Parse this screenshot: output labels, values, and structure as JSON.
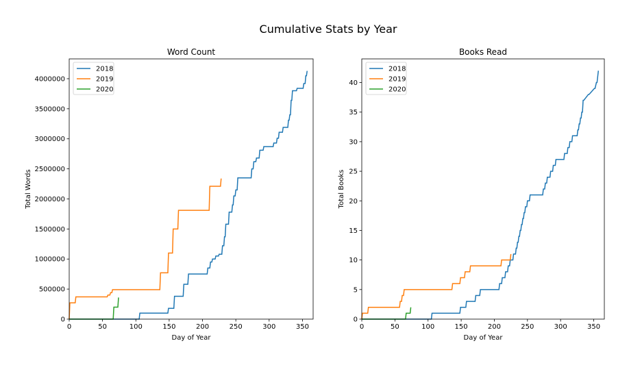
{
  "figure": {
    "title": "Cumulative Stats by Year"
  },
  "chart_data": [
    {
      "type": "line",
      "title": "Word Count",
      "xlabel": "Day of Year",
      "ylabel": "Total Words",
      "xlim": [
        0,
        366
      ],
      "ylim": [
        0,
        4330000
      ],
      "xticks": [
        0,
        50,
        100,
        150,
        200,
        250,
        300,
        350
      ],
      "yticks": [
        0,
        500000,
        1000000,
        1500000,
        2000000,
        2500000,
        3000000,
        3500000,
        4000000
      ],
      "legend": "upper-left",
      "grid": false,
      "step": true,
      "series": [
        {
          "name": "2018",
          "color": "#1f77b4",
          "x": [
            0,
            105,
            106,
            148,
            149,
            157,
            158,
            171,
            172,
            178,
            179,
            207,
            208,
            211,
            212,
            214,
            215,
            219,
            220,
            224,
            225,
            229,
            230,
            232,
            233,
            234,
            235,
            239,
            240,
            244,
            245,
            246,
            247,
            249,
            250,
            252,
            253,
            273,
            274,
            276,
            277,
            280,
            281,
            285,
            286,
            291,
            292,
            306,
            307,
            311,
            312,
            314,
            315,
            320,
            321,
            328,
            329,
            330,
            331,
            332,
            333,
            334,
            335,
            341,
            342,
            351,
            352,
            354,
            355,
            356,
            357
          ],
          "y": [
            0,
            0,
            100000,
            100000,
            180000,
            180000,
            380000,
            380000,
            580000,
            580000,
            750000,
            750000,
            850000,
            850000,
            950000,
            950000,
            1000000,
            1000000,
            1050000,
            1050000,
            1080000,
            1080000,
            1220000,
            1220000,
            1370000,
            1370000,
            1580000,
            1580000,
            1780000,
            1780000,
            1900000,
            1900000,
            2050000,
            2050000,
            2150000,
            2150000,
            2350000,
            2350000,
            2500000,
            2500000,
            2620000,
            2620000,
            2680000,
            2680000,
            2810000,
            2810000,
            2870000,
            2870000,
            2930000,
            2930000,
            3010000,
            3010000,
            3110000,
            3110000,
            3190000,
            3190000,
            3310000,
            3310000,
            3400000,
            3400000,
            3640000,
            3640000,
            3800000,
            3800000,
            3840000,
            3840000,
            3920000,
            3920000,
            4050000,
            4050000,
            4130000
          ]
        },
        {
          "name": "2019",
          "color": "#ff7f0e",
          "x": [
            0,
            1,
            9,
            10,
            57,
            58,
            61,
            62,
            64,
            65,
            136,
            137,
            148,
            149,
            155,
            156,
            163,
            164,
            210,
            211,
            227,
            228
          ],
          "y": [
            0,
            270000,
            270000,
            370000,
            370000,
            400000,
            400000,
            440000,
            440000,
            490000,
            490000,
            770000,
            770000,
            1100000,
            1100000,
            1500000,
            1500000,
            1810000,
            1810000,
            2210000,
            2210000,
            2340000
          ]
        },
        {
          "name": "2020",
          "color": "#2ca02c",
          "x": [
            0,
            66,
            67,
            73,
            74
          ],
          "y": [
            0,
            0,
            200000,
            200000,
            360000
          ]
        }
      ]
    },
    {
      "type": "line",
      "title": "Books Read",
      "xlabel": "Day of Year",
      "ylabel": "Total Books",
      "xlim": [
        0,
        366
      ],
      "ylim": [
        0,
        44
      ],
      "xticks": [
        0,
        50,
        100,
        150,
        200,
        250,
        300,
        350
      ],
      "yticks": [
        0,
        5,
        10,
        15,
        20,
        25,
        30,
        35,
        40
      ],
      "legend": "upper-left",
      "grid": false,
      "step": true,
      "series": [
        {
          "name": "2018",
          "color": "#1f77b4",
          "x": [
            0,
            105,
            106,
            148,
            149,
            157,
            158,
            171,
            172,
            178,
            179,
            207,
            208,
            211,
            212,
            216,
            217,
            220,
            221,
            223,
            224,
            228,
            229,
            232,
            233,
            234,
            235,
            236,
            237,
            238,
            239,
            240,
            241,
            242,
            243,
            244,
            245,
            246,
            247,
            249,
            250,
            253,
            254,
            273,
            274,
            276,
            277,
            279,
            280,
            284,
            285,
            288,
            289,
            292,
            293,
            305,
            306,
            310,
            311,
            313,
            314,
            317,
            318,
            325,
            326,
            327,
            328,
            329,
            330,
            331,
            332,
            333,
            334,
            335,
            342,
            343,
            351,
            352,
            354,
            355,
            356,
            357
          ],
          "y": [
            0,
            0,
            1,
            1,
            2,
            2,
            3,
            3,
            4,
            4,
            5,
            5,
            6,
            6,
            7,
            7,
            8,
            8,
            9,
            9,
            10,
            10,
            11,
            11,
            12,
            12,
            13,
            13,
            14,
            14,
            15,
            15,
            16,
            16,
            17,
            17,
            18,
            18,
            19,
            19,
            20,
            20,
            21,
            21,
            22,
            22,
            23,
            23,
            24,
            24,
            25,
            25,
            26,
            26,
            27,
            27,
            28,
            28,
            29,
            29,
            30,
            30,
            31,
            31,
            32,
            32,
            33,
            33,
            34,
            34,
            35,
            35,
            37,
            37,
            38,
            38,
            39,
            39,
            40,
            40,
            41,
            42
          ]
        },
        {
          "name": "2019",
          "color": "#ff7f0e",
          "x": [
            0,
            1,
            9,
            10,
            57,
            58,
            60,
            61,
            63,
            64,
            136,
            137,
            148,
            149,
            155,
            156,
            163,
            164,
            210,
            211,
            224,
            225
          ],
          "y": [
            0,
            1,
            1,
            2,
            2,
            3,
            3,
            4,
            4,
            5,
            5,
            6,
            6,
            7,
            7,
            8,
            8,
            9,
            9,
            10,
            10,
            11
          ]
        },
        {
          "name": "2020",
          "color": "#2ca02c",
          "x": [
            0,
            66,
            67,
            73,
            74
          ],
          "y": [
            0,
            0,
            1,
            1,
            2
          ]
        }
      ]
    }
  ]
}
